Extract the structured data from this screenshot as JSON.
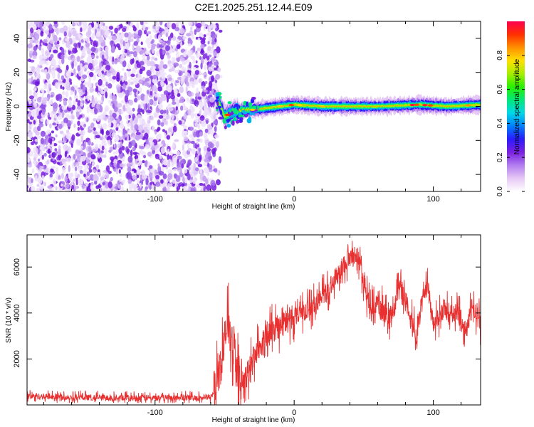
{
  "figure_title": "C2E1.2025.251.12.44.E09",
  "chart_data": [
    {
      "type": "heatmap",
      "title": "C2E1.2025.251.12.44.E09",
      "xlabel": "Height of straight line (km)",
      "ylabel": "Frequency (Hz)",
      "xlim": [
        -192,
        134
      ],
      "ylim": [
        -50,
        50
      ],
      "xticks": [
        -100,
        0,
        100
      ],
      "yticks": [
        -40,
        -20,
        0,
        20,
        40
      ],
      "noise_region_x": [
        -192,
        -55
      ],
      "signal_trace": [
        {
          "x": -55,
          "f": 4
        },
        {
          "x": -52,
          "f": -2
        },
        {
          "x": -50,
          "f": -6
        },
        {
          "x": -46,
          "f": -4
        },
        {
          "x": -42,
          "f": -3
        },
        {
          "x": -38,
          "f": -2
        },
        {
          "x": -30,
          "f": -2
        },
        {
          "x": -20,
          "f": -1
        },
        {
          "x": -10,
          "f": 0
        },
        {
          "x": 0,
          "f": 1
        },
        {
          "x": 20,
          "f": 0
        },
        {
          "x": 60,
          "f": 0
        },
        {
          "x": 90,
          "f": 1
        },
        {
          "x": 110,
          "f": 0
        },
        {
          "x": 134,
          "f": 1
        }
      ],
      "colorbar": {
        "label": "Normalized spectral amplitude",
        "range": [
          0,
          1
        ],
        "ticks": [
          "0.0",
          "0.2",
          "0.4",
          "0.6",
          "0.8"
        ],
        "colors": [
          "#ffffff",
          "#e6c8f5",
          "#b27ef0",
          "#7a1fe0",
          "#2a1cff",
          "#0080ff",
          "#00d8e8",
          "#00e878",
          "#28f000",
          "#a8ee00",
          "#ffe000",
          "#ff9000",
          "#ff3000",
          "#ff0050"
        ]
      }
    },
    {
      "type": "line",
      "xlabel": "Height of straight line (km)",
      "ylabel": "SNR (10 * v/v)",
      "xlim": [
        -192,
        134
      ],
      "ylim": [
        0,
        7400
      ],
      "xticks": [
        -100,
        0,
        100
      ],
      "yticks": [
        2000,
        4000,
        6000
      ],
      "line_color": "#e83030",
      "series": [
        {
          "name": "SNR",
          "x": [
            -192,
            -150,
            -100,
            -60,
            -56,
            -52,
            -50,
            -48,
            -46,
            -44,
            -42,
            -40,
            -36,
            -32,
            -28,
            -24,
            -20,
            -16,
            -12,
            -8,
            -4,
            0,
            4,
            8,
            12,
            16,
            20,
            24,
            28,
            32,
            36,
            40,
            44,
            48,
            52,
            56,
            60,
            64,
            68,
            72,
            76,
            80,
            84,
            88,
            92,
            96,
            100,
            104,
            108,
            112,
            116,
            120,
            124,
            128,
            132,
            134
          ],
          "y": [
            380,
            330,
            300,
            320,
            800,
            2000,
            2800,
            3400,
            3000,
            2700,
            2200,
            800,
            1000,
            1600,
            2200,
            2600,
            3000,
            3200,
            3400,
            3500,
            3700,
            3900,
            4000,
            4100,
            4200,
            4400,
            4700,
            5000,
            5400,
            5700,
            6200,
            6400,
            6600,
            6000,
            4800,
            4300,
            4400,
            4000,
            3700,
            4200,
            5400,
            4600,
            3800,
            3000,
            4300,
            5200,
            3500,
            3800,
            4200,
            3900,
            4100,
            3700,
            3300,
            4300,
            3800,
            3400
          ]
        }
      ]
    }
  ]
}
